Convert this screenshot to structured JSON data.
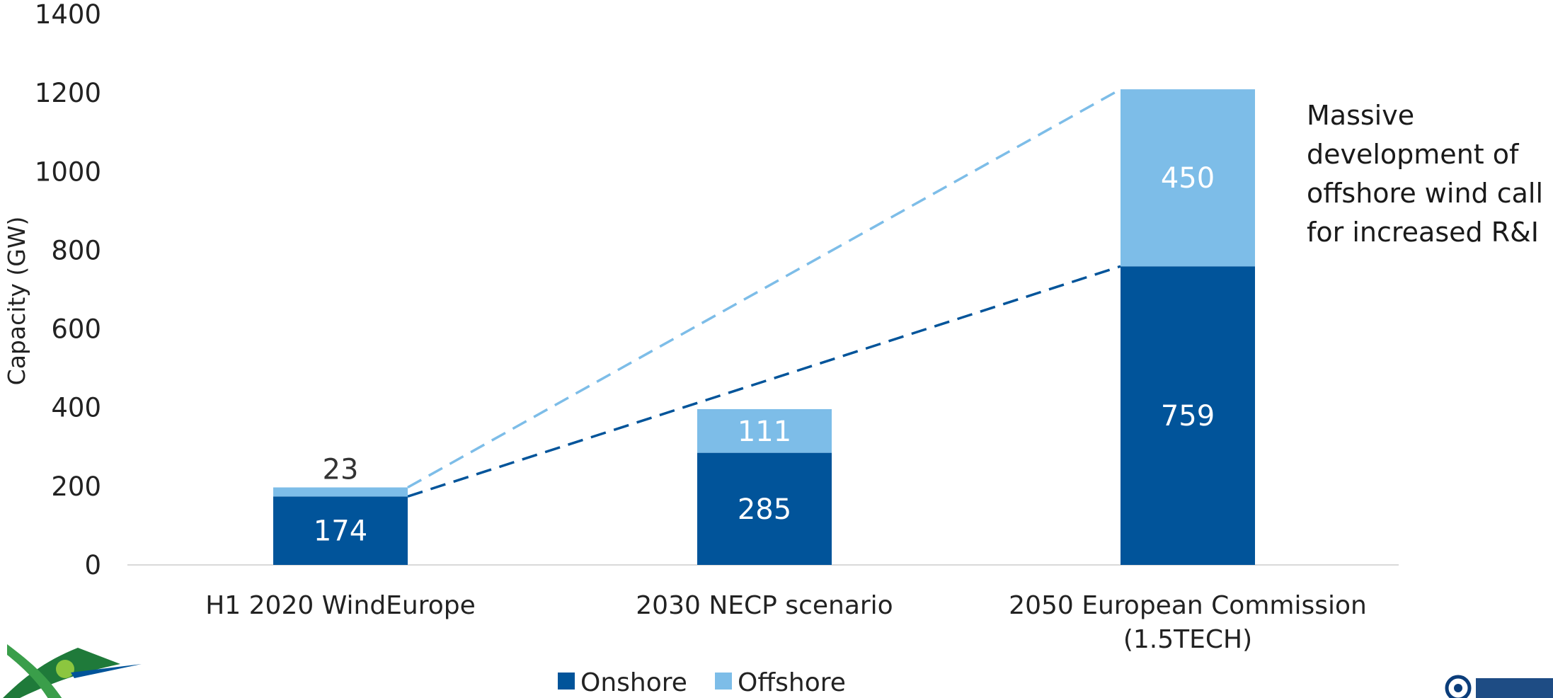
{
  "chart_data": {
    "type": "bar",
    "stacked": true,
    "title": "",
    "xlabel": "",
    "ylabel": "Capacity (GW)",
    "ylim": [
      0,
      1400
    ],
    "yticks": [
      0,
      200,
      400,
      600,
      800,
      1000,
      1200,
      1400
    ],
    "grid": false,
    "legend_position": "bottom",
    "categories": [
      [
        "H1 2020 WindEurope"
      ],
      [
        "2030 NECP scenario"
      ],
      [
        "2050 European Commission",
        "(1.5TECH)"
      ]
    ],
    "series": [
      {
        "name": "Onshore",
        "color": "#01549a",
        "label_color": "#ffffff",
        "values": [
          174,
          285,
          759
        ]
      },
      {
        "name": "Offshore",
        "color": "#7dbde8",
        "label_color": "#ffffff",
        "values": [
          23,
          111,
          450
        ]
      }
    ],
    "trend_lines": [
      {
        "series": "Onshore",
        "color": "#01549a",
        "style": "dashed"
      },
      {
        "series": "Offshore",
        "color": "#7dbde8",
        "style": "dashed"
      }
    ],
    "annotation": [
      "Massive",
      "development of",
      "offshore wind call",
      "for increased R&I"
    ]
  }
}
